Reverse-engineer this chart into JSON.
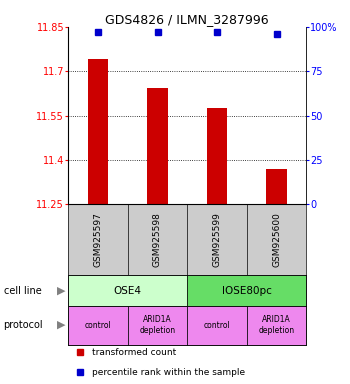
{
  "title": "GDS4826 / ILMN_3287996",
  "samples": [
    "GSM925597",
    "GSM925598",
    "GSM925599",
    "GSM925600"
  ],
  "bar_values": [
    11.74,
    11.645,
    11.575,
    11.37
  ],
  "percentile_values": [
    97,
    97,
    97,
    96
  ],
  "ylim_left": [
    11.25,
    11.85
  ],
  "ylim_right": [
    0,
    100
  ],
  "yticks_left": [
    11.25,
    11.4,
    11.55,
    11.7,
    11.85
  ],
  "ytick_labels_left": [
    "11.25",
    "11.4",
    "11.55",
    "11.7",
    "11.85"
  ],
  "yticks_right": [
    0,
    25,
    50,
    75,
    100
  ],
  "ytick_labels_right": [
    "0",
    "25",
    "50",
    "75",
    "100%"
  ],
  "bar_color": "#cc0000",
  "dot_color": "#0000cc",
  "cell_line_labels": [
    "OSE4",
    "IOSE80pc"
  ],
  "cell_line_spans": [
    [
      0,
      2
    ],
    [
      2,
      4
    ]
  ],
  "cell_line_colors": [
    "#ccffcc",
    "#66dd66"
  ],
  "protocol_labels": [
    "control",
    "ARID1A\ndepletion",
    "control",
    "ARID1A\ndepletion"
  ],
  "protocol_color": "#ee88ee",
  "sample_box_color": "#cccccc",
  "legend_red_label": "transformed count",
  "legend_blue_label": "percentile rank within the sample",
  "cell_line_label": "cell line",
  "protocol_label": "protocol"
}
